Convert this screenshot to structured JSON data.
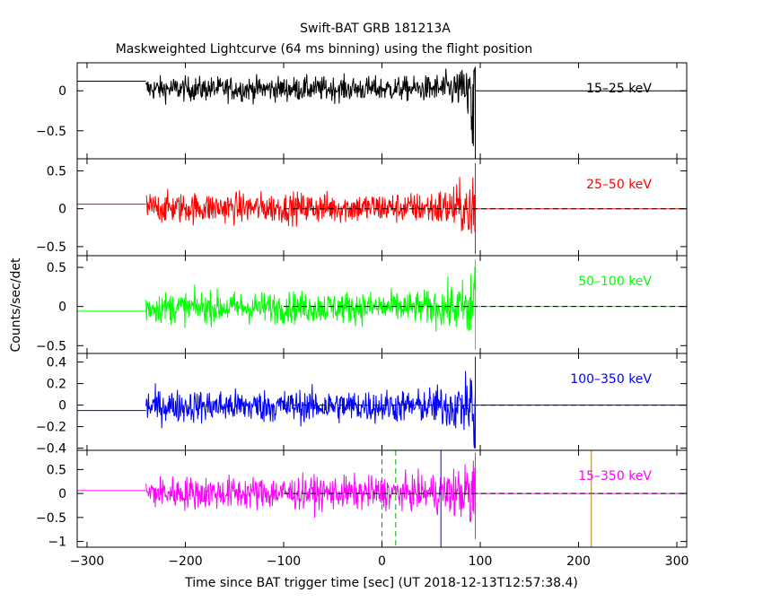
{
  "chart_data": {
    "type": "line",
    "title": "Swift-BAT GRB 181213A",
    "subtitle": "Maskweighted Lightcurve (64 ms binning) using the flight position",
    "xlabel": "Time since BAT trigger time [sec] (UT 2018-12-13T12:57:38.4)",
    "ylabel": "Counts/sec/det",
    "xlim": [
      -310,
      310
    ],
    "xticks": [
      -300,
      -200,
      -100,
      0,
      100,
      200,
      300
    ],
    "xtick_labels": [
      "−300",
      "−200",
      "−100",
      "0",
      "100",
      "200",
      "300"
    ],
    "data_start": -240,
    "data_end": 95,
    "panels": [
      {
        "band": "15–25 keV",
        "color": "#000000",
        "ylim": [
          -0.85,
          0.35
        ],
        "yticks": [
          0,
          -0.5
        ],
        "ytick_labels": [
          "0",
          "−0.5"
        ],
        "pre_level": 0.12,
        "post_level": 0.0,
        "zero_dashed": false,
        "noise": 0.075,
        "flare_min": -0.85,
        "flare_max": 0.3
      },
      {
        "band": "25–50 keV",
        "color": "#ff0000",
        "ylim": [
          -0.62,
          0.66
        ],
        "yticks": [
          0.5,
          0,
          -0.5
        ],
        "ytick_labels": [
          "0.5",
          "0",
          "−0.5"
        ],
        "pre_level": 0.06,
        "post_level": 0.0,
        "zero_dashed": true,
        "noise": 0.1,
        "flare_min": -0.6,
        "flare_max": 0.6
      },
      {
        "band": "50–100 keV",
        "color": "#00ff00",
        "ylim": [
          -0.6,
          0.65
        ],
        "yticks": [
          0.5,
          0,
          -0.5
        ],
        "ytick_labels": [
          "0.5",
          "0",
          "−0.5"
        ],
        "pre_level": -0.06,
        "post_level": 0.0,
        "zero_dashed": true,
        "noise": 0.1,
        "flare_min": -0.55,
        "flare_max": 0.6
      },
      {
        "band": "100–350 keV",
        "color": "#0000ff",
        "ylim": [
          -0.42,
          0.48
        ],
        "yticks": [
          0.4,
          0.2,
          0,
          -0.2,
          -0.4
        ],
        "ytick_labels": [
          "0.4",
          "0.2",
          "0",
          "−0.2",
          "−0.4"
        ],
        "pre_level": -0.05,
        "post_level": 0.0,
        "zero_dashed": true,
        "noise": 0.075,
        "flare_min": -0.4,
        "flare_max": 0.45
      },
      {
        "band": "15–350 keV",
        "color": "#ff00ff",
        "ylim": [
          -1.12,
          0.9
        ],
        "yticks": [
          0.5,
          0,
          -0.5,
          -1
        ],
        "ytick_labels": [
          "0.5",
          "0",
          "−0.5",
          "−1"
        ],
        "pre_level": 0.06,
        "post_level": 0.0,
        "zero_dashed": true,
        "noise": 0.17,
        "flare_min": -0.95,
        "flare_max": 0.85
      }
    ],
    "markers": [
      {
        "x": 0,
        "color": "#00aa00",
        "style": "dashed"
      },
      {
        "x": 14,
        "color": "#00aa00",
        "style": "dashed"
      },
      {
        "x": 60,
        "color": "#0000ff",
        "style": "solid"
      },
      {
        "x": 213,
        "color": "#b8860b",
        "style": "solid"
      }
    ],
    "grid": false,
    "legend": "per-panel band label, top-right"
  }
}
